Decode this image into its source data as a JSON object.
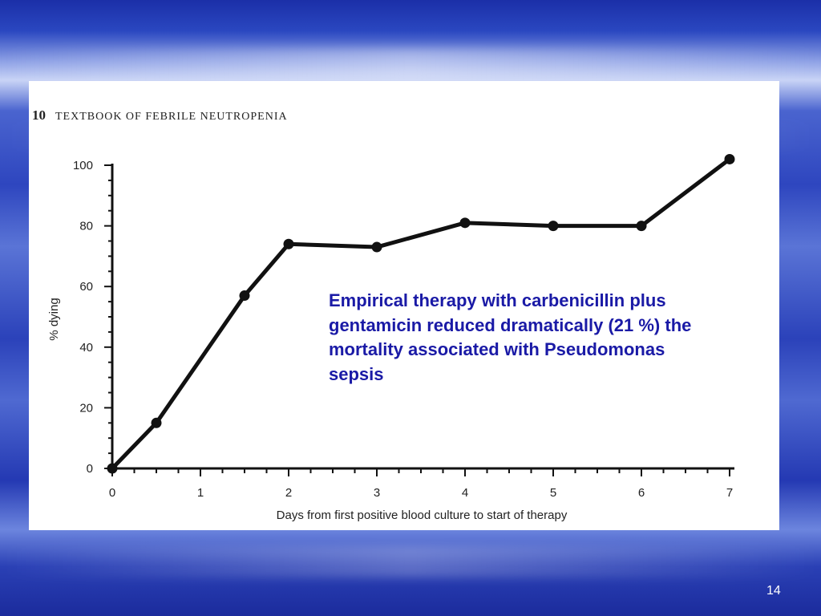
{
  "slide": {
    "page_number": "14"
  },
  "book_header": {
    "page": "10",
    "title": "TEXTBOOK OF FEBRILE NEUTROPENIA"
  },
  "callout": {
    "text": "Empirical therapy with carbenicillin plus gentamicin reduced dramatically (21 %) the mortality associated with Pseudomonas sepsis"
  },
  "chart_data": {
    "type": "line",
    "title": "",
    "xlabel": "Days from first positive blood culture to start of therapy",
    "ylabel": "% dying",
    "xlim": [
      0,
      7
    ],
    "ylim": [
      0,
      100
    ],
    "x_ticks": [
      0,
      1,
      2,
      3,
      4,
      5,
      6,
      7
    ],
    "y_ticks": [
      0,
      20,
      40,
      60,
      80,
      100
    ],
    "grid": false,
    "series": [
      {
        "points": [
          {
            "x": 0,
            "y": 0
          },
          {
            "x": 0.5,
            "y": 15
          },
          {
            "x": 1.5,
            "y": 57
          },
          {
            "x": 2,
            "y": 74
          },
          {
            "x": 3,
            "y": 73
          },
          {
            "x": 4,
            "y": 81
          },
          {
            "x": 5,
            "y": 80
          },
          {
            "x": 6,
            "y": 80
          },
          {
            "x": 7,
            "y": 102
          }
        ],
        "color": "#111111"
      }
    ]
  }
}
